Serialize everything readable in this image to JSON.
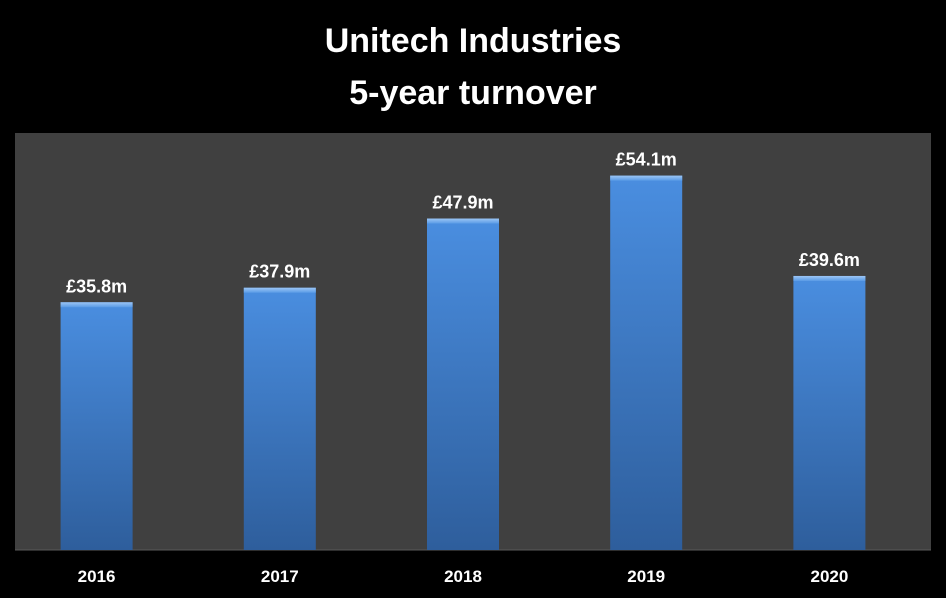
{
  "chart_data": {
    "type": "bar",
    "title": "Unitech Industries",
    "subtitle": "5-year turnover",
    "xlabel": "",
    "ylabel": "",
    "categories": [
      "2016",
      "2017",
      "2018",
      "2019",
      "2020"
    ],
    "values": [
      35.8,
      37.9,
      47.9,
      54.1,
      39.6
    ],
    "data_labels": [
      "£35.8m",
      "£37.9m",
      "£47.9m",
      "£54.1m",
      "£39.6m"
    ],
    "unit": "£m",
    "ylim": [
      0,
      60
    ],
    "grid": false,
    "legend": "none"
  },
  "colors": {
    "page_background": "#000000",
    "plot_background": "#404040",
    "bar_light": "#5a9be6",
    "bar_dark": "#2f5f9e",
    "text": "#ffffff"
  }
}
